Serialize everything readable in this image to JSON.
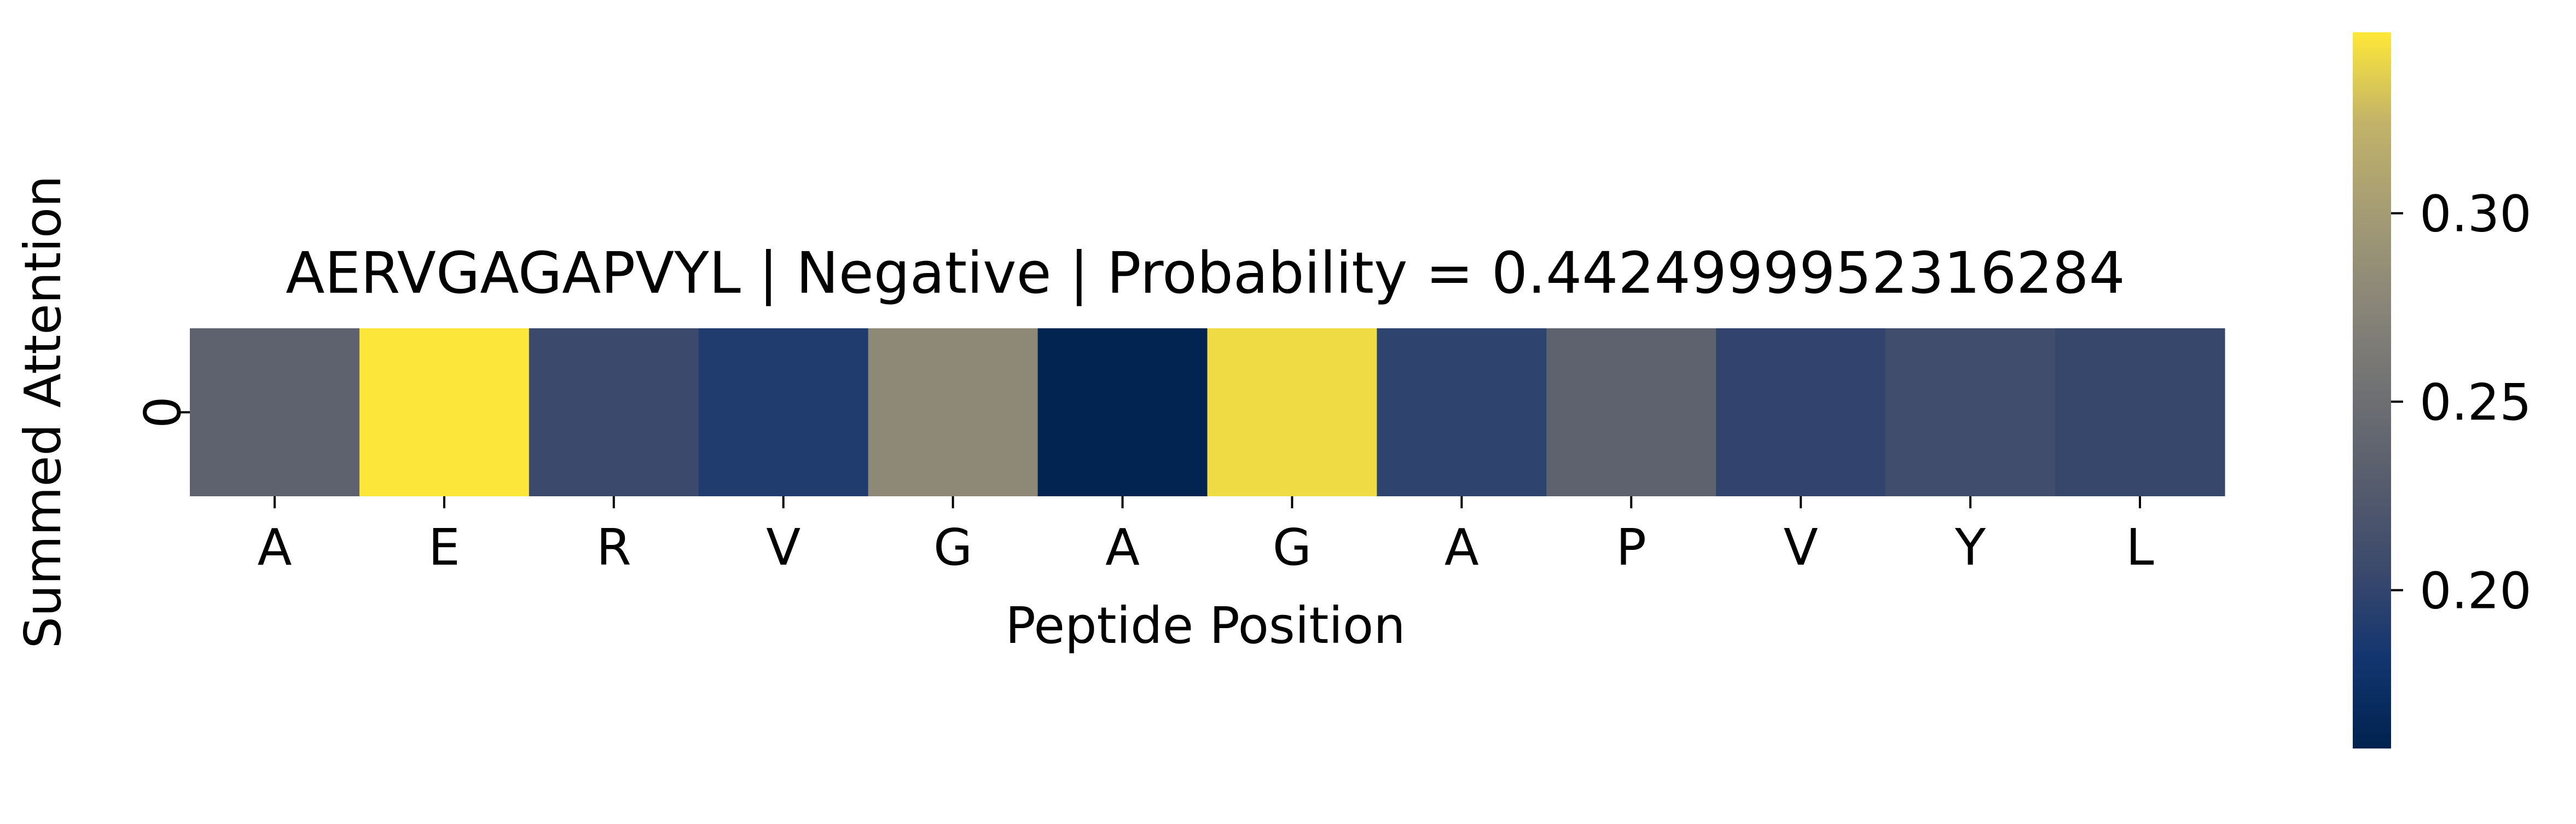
{
  "chart_data": {
    "type": "heatmap",
    "title": "AERVGAGAPVYL | Negative | Probability = 0.4424999952316284",
    "xlabel": "Peptide Position",
    "ylabel": "Summed Attention",
    "x_ticks": [
      "A",
      "E",
      "R",
      "V",
      "G",
      "A",
      "G",
      "A",
      "P",
      "V",
      "Y",
      "L"
    ],
    "y_ticks": [
      "0"
    ],
    "values": [
      0.235,
      0.347,
      0.205,
      0.19,
      0.28,
      0.16,
      0.342,
      0.198,
      0.235,
      0.2,
      0.21,
      0.203
    ],
    "colormap": "cividis",
    "colorbar": {
      "vmin": 0.158,
      "vmax": 0.348,
      "ticks": [
        0.2,
        0.25,
        0.3
      ],
      "tick_labels": [
        "0.20",
        "0.25",
        "0.30"
      ]
    },
    "grid": false
  }
}
